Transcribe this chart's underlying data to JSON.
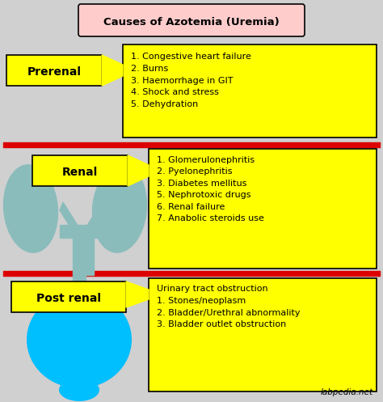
{
  "title": "Causes of Azotemia (Uremia)",
  "title_bg": "#ffcccc",
  "bg_color": "#d0d0d0",
  "yellow": "#ffff00",
  "red_line": "#dd0000",
  "section1_label": "Prerenal",
  "section1_items": "1. Congestive heart failure\n2. Burns\n3. Haemorrhage in GIT\n4. Shock and stress\n5. Dehydration",
  "section2_label": "Renal",
  "section2_items": "1. Glomerulonephritis\n2. Pyelonephritis\n3. Diabetes mellitus\n5. Nephrotoxic drugs\n6. Renal failure\n7. Anabolic steroids use",
  "section3_label": "Post renal",
  "section3_items": "Urinary tract obstruction\n1. Stones/neoplasm\n2. Bladder/Urethral abnormality\n3. Bladder outlet obstruction",
  "watermark": "labpedia.net",
  "kidney_color": "#8bbcbc",
  "bladder_color": "#00bfff"
}
